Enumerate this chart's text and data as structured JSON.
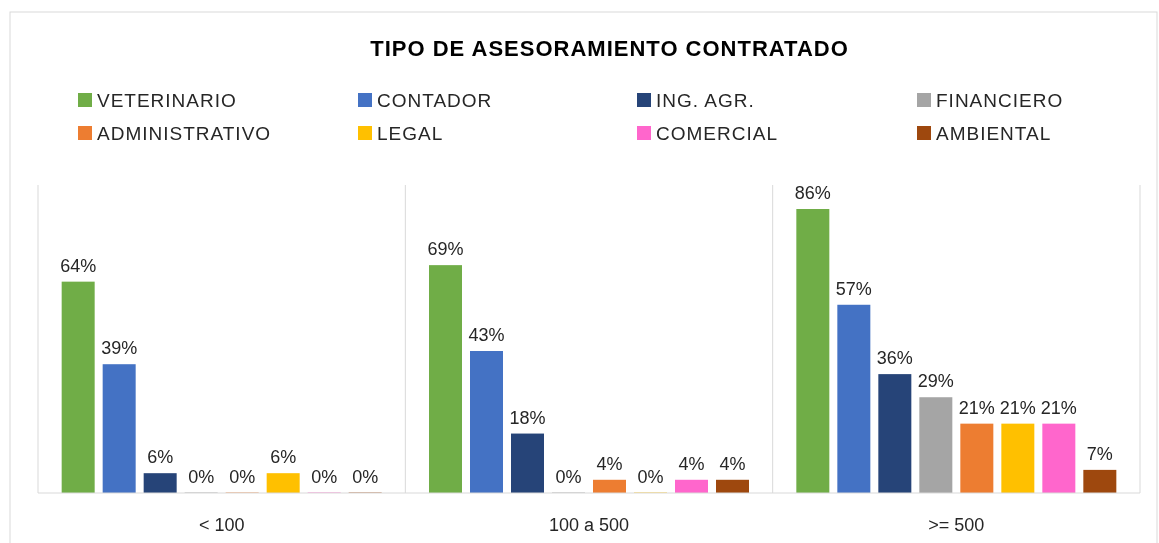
{
  "chart_data": {
    "type": "bar",
    "title": "TIPO DE ASESORAMIENTO CONTRATADO",
    "categories": [
      "< 100",
      "100 a 500",
      ">= 500"
    ],
    "legend": "top",
    "series": [
      {
        "name": "VETERINARIO",
        "color": "#70ad47",
        "values": [
          64,
          69,
          86
        ],
        "value_labels": [
          "64%",
          "69%",
          "86%"
        ]
      },
      {
        "name": "CONTADOR",
        "color": "#4472c4",
        "values": [
          39,
          43,
          57
        ],
        "value_labels": [
          "39%",
          "43%",
          "57%"
        ]
      },
      {
        "name": "ING. AGR.",
        "color": "#264478",
        "values": [
          6,
          18,
          36
        ],
        "value_labels": [
          "6%",
          "18%",
          "36%"
        ]
      },
      {
        "name": "FINANCIERO",
        "color": "#a5a5a5",
        "values": [
          0,
          0,
          29
        ],
        "value_labels": [
          "0%",
          "0%",
          "29%"
        ]
      },
      {
        "name": "ADMINISTRATIVO",
        "color": "#ed7d31",
        "values": [
          0,
          4,
          21
        ],
        "value_labels": [
          "0%",
          "4%",
          "21%"
        ]
      },
      {
        "name": "LEGAL",
        "color": "#ffc000",
        "values": [
          6,
          0,
          21
        ],
        "value_labels": [
          "6%",
          "0%",
          "21%"
        ]
      },
      {
        "name": "COMERCIAL",
        "color": "#ff66cc",
        "values": [
          0,
          4,
          21
        ],
        "value_labels": [
          "0%",
          "4%",
          "21%"
        ]
      },
      {
        "name": "AMBIENTAL",
        "color": "#9e480e",
        "values": [
          0,
          4,
          7
        ],
        "value_labels": [
          "0%",
          "4%",
          "7%"
        ]
      }
    ]
  }
}
